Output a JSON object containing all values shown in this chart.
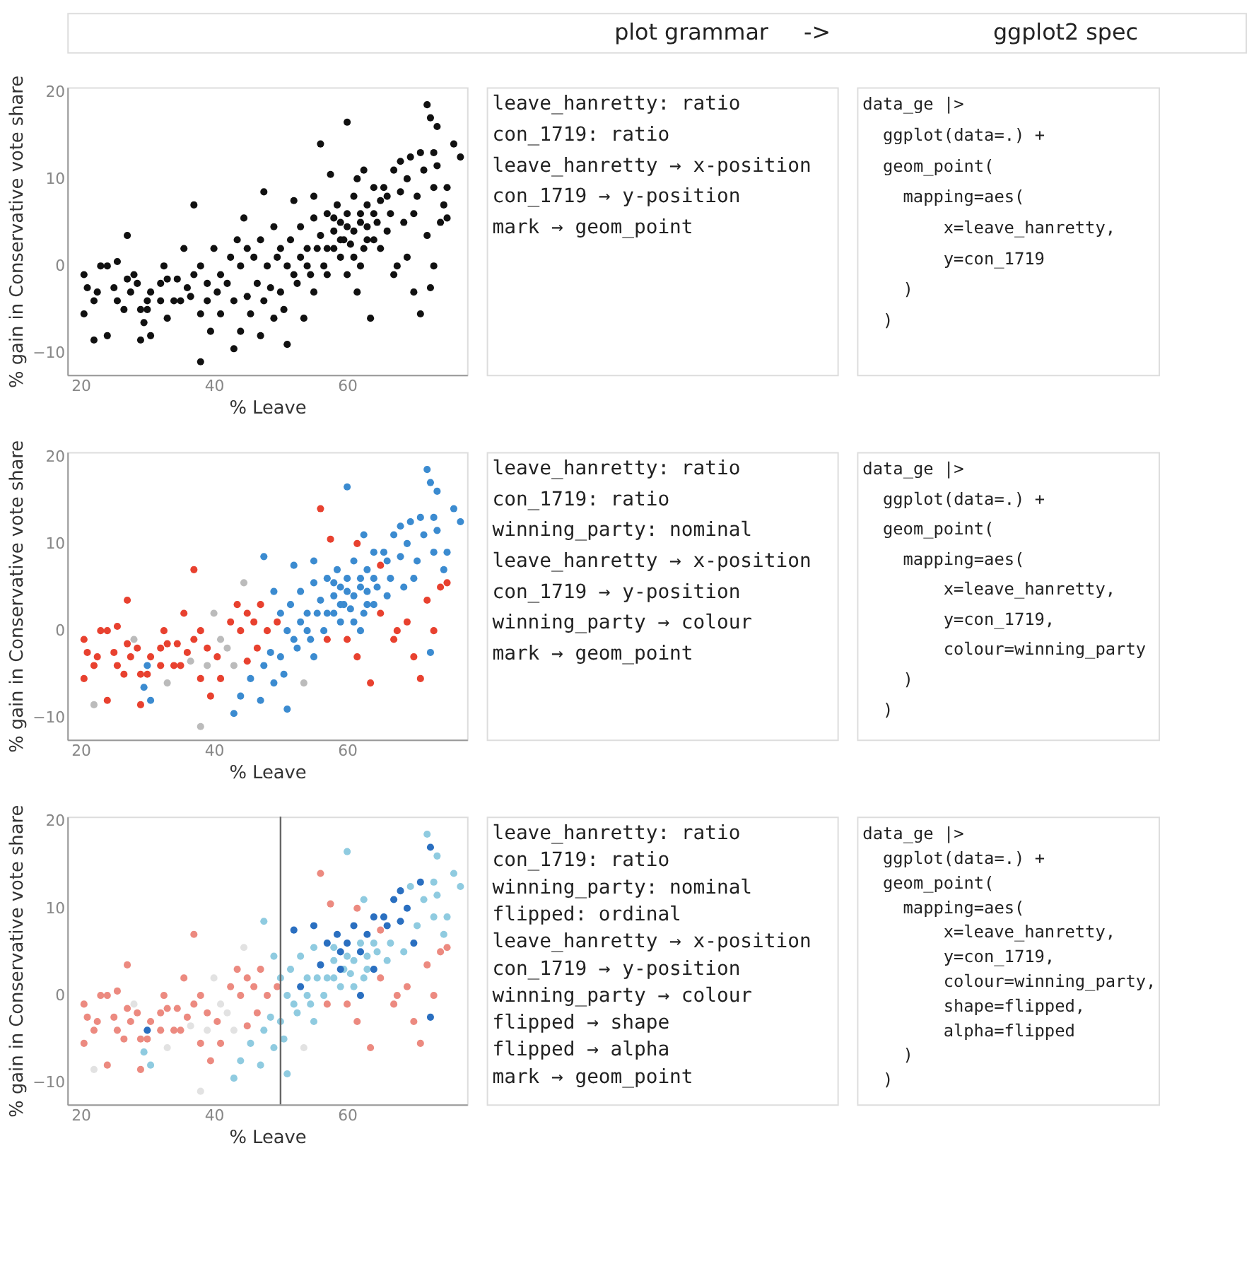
{
  "chart_data": [
    {
      "type": "other",
      "annotations": [
        "plot grammar",
        "->",
        "ggplot2 spec"
      ]
    },
    {
      "type": "scatter",
      "xlabel": "% Leave",
      "ylabel": "% gain in Conservative vote share",
      "xlim": [
        18,
        78
      ],
      "ylim": [
        -12.5,
        20.5
      ],
      "xticks": [
        20,
        40,
        60
      ],
      "yticks": [
        -10,
        0,
        10,
        20
      ],
      "marker": "circle",
      "series": [
        {
          "color": "#111111",
          "x": [
            20.5,
            21,
            20.5,
            22,
            22,
            22.5,
            23,
            24,
            24,
            25,
            25.5,
            25.5,
            26.5,
            27,
            27,
            27.5,
            28,
            28.5,
            29,
            29,
            29.5,
            30,
            30,
            30.5,
            30.5,
            32,
            32,
            32.5,
            33,
            33,
            34,
            34.5,
            35,
            35.5,
            36,
            36.5,
            37,
            37,
            38,
            38,
            38,
            39,
            39,
            39.5,
            40,
            40.5,
            41,
            41,
            42,
            42.5,
            43,
            43,
            43.5,
            44,
            44,
            44.5,
            45,
            45,
            45.5,
            46,
            46.5,
            47,
            47,
            47.5,
            47.5,
            48,
            48.5,
            49,
            49,
            49.5,
            50,
            50,
            50.5,
            51,
            51,
            51.5,
            52,
            52,
            52.5,
            53,
            53,
            53.5,
            54,
            54,
            54.5,
            55,
            55,
            55,
            55.5,
            56,
            56,
            56.5,
            57,
            57,
            57.5,
            58,
            58,
            58.5,
            59,
            59,
            59.5,
            60,
            60,
            60,
            60.5,
            61,
            61,
            61.5,
            61.5,
            62,
            62,
            62.5,
            62.5,
            63,
            63,
            63.5,
            64,
            64,
            64.5,
            65,
            65,
            65.5,
            66,
            66.5,
            67,
            67,
            67.5,
            68,
            68,
            68.5,
            69,
            69,
            69.5,
            70,
            70,
            70.5,
            71,
            71,
            71.5,
            72,
            72,
            72.5,
            72.5,
            73,
            73,
            73,
            73.5,
            73.5,
            74,
            74.5,
            75,
            75,
            76,
            77,
            59,
            58,
            57,
            60,
            61,
            63,
            62,
            64,
            66
          ],
          "values": [
            -1,
            -2.5,
            -5.5,
            -4,
            -8.5,
            -3,
            0,
            0,
            -8,
            -2.5,
            0.5,
            -4,
            -5,
            3.5,
            -1.5,
            -3,
            -1,
            -2,
            -5,
            -8.5,
            -6.5,
            -4,
            -5,
            -3,
            -8,
            -2,
            -4,
            0,
            -1.5,
            -6,
            -4,
            -1.5,
            -4,
            2,
            -2.5,
            -3.5,
            7,
            -1,
            0,
            -5.5,
            -11,
            -2,
            -4,
            -7.5,
            2,
            -3,
            -1,
            -5.5,
            -2,
            1,
            -4,
            -9.5,
            3,
            0,
            -7.5,
            5.5,
            -3.5,
            2,
            -5.5,
            1,
            -2,
            3,
            -8,
            -4,
            8.5,
            0,
            -2.5,
            4.5,
            -6,
            1,
            -3,
            2,
            -5,
            -9,
            0,
            3,
            -1,
            7.5,
            -2,
            1,
            4.5,
            -6,
            0,
            2,
            -1,
            5.5,
            8,
            -3,
            2,
            14,
            3.5,
            0,
            6,
            -1,
            10.5,
            4,
            2,
            7,
            1,
            5,
            3,
            16.5,
            -1,
            6,
            2.5,
            8,
            4,
            -3,
            10,
            0,
            6,
            11,
            2,
            4.5,
            7,
            -6,
            3,
            9,
            5,
            2,
            7.5,
            9,
            4,
            6,
            -1,
            11,
            0,
            8.5,
            12,
            5,
            1,
            10,
            12.5,
            -3,
            6,
            8,
            13,
            -5.5,
            11,
            3.5,
            18.5,
            -2.5,
            17,
            13,
            0,
            9,
            16,
            11.5,
            5,
            7,
            9,
            5.5,
            14,
            12.5,
            3,
            5.5,
            2,
            4.5,
            1,
            3,
            5,
            6,
            8
          ]
        }
      ]
    },
    {
      "type": "other",
      "annotations": [
        "leave_hanretty: ratio",
        "con_1719: ratio",
        "leave_hanretty → x-position",
        "con_1719 → y-position",
        "mark → geom_point"
      ]
    },
    {
      "type": "other",
      "annotations": [
        "data_ge |>",
        "  ggplot(data=.) +",
        "  geom_point(",
        "    mapping=aes(",
        "        x=leave_hanretty,",
        "        y=con_1719",
        "    )",
        "  )"
      ]
    },
    {
      "type": "scatter",
      "xlabel": "% Leave",
      "ylabel": "% gain in Conservative vote share",
      "xlim": [
        18,
        78
      ],
      "ylim": [
        -12.5,
        20.5
      ],
      "xticks": [
        20,
        40,
        60
      ],
      "yticks": [
        -10,
        0,
        10,
        20
      ],
      "marker": "circle",
      "series": [
        {
          "color": "#bbbbbb",
          "x": [
            22,
            28,
            33,
            36.5,
            38,
            39,
            40,
            41,
            42,
            43,
            44.5,
            53.5
          ],
          "values": [
            -8.5,
            -1,
            -6,
            -3.5,
            -11,
            -4,
            2,
            -1,
            -2,
            -4,
            5.5,
            -6
          ]
        },
        {
          "color": "#e8412f",
          "x": [
            20.5,
            21,
            20.5,
            22,
            22.5,
            23,
            24,
            24,
            25,
            25.5,
            25.5,
            26.5,
            27,
            27,
            27.5,
            28.5,
            29,
            29,
            30,
            30.5,
            32,
            32,
            32.5,
            33,
            34,
            34.5,
            35,
            35.5,
            36,
            37,
            37,
            38,
            38,
            39,
            39.5,
            40.5,
            41,
            42.5,
            43.5,
            44,
            45,
            45,
            46,
            46.5,
            47,
            48,
            49.5,
            56,
            57,
            57.5,
            60,
            61.5,
            61.5,
            63.5,
            65,
            65,
            67,
            67.5,
            69,
            70,
            71,
            72,
            73,
            74,
            75
          ],
          "values": [
            -1,
            -2.5,
            -5.5,
            -4,
            -3,
            0,
            0,
            -8,
            -2.5,
            0.5,
            -4,
            -5,
            3.5,
            -1.5,
            -3,
            -2,
            -5,
            -8.5,
            -5,
            -3,
            -2,
            -4,
            0,
            -1.5,
            -4,
            -1.5,
            -4,
            2,
            -2.5,
            7,
            -1,
            0,
            -5.5,
            -2,
            -7.5,
            -3,
            -5.5,
            1,
            3,
            0,
            -3.5,
            2,
            1,
            -2,
            3,
            0,
            1,
            14,
            -1,
            10.5,
            -1,
            -3,
            10,
            -6,
            2,
            7.5,
            -1,
            0,
            1,
            -3,
            -5.5,
            3.5,
            0,
            5,
            5.5
          ]
        },
        {
          "color": "#3b8bd0",
          "x": [
            30,
            29.5,
            30.5,
            43,
            44,
            45.5,
            47,
            47.5,
            47.5,
            48.5,
            49,
            49,
            50,
            50,
            50.5,
            51,
            51,
            51.5,
            52,
            52,
            52.5,
            53,
            53,
            54,
            54,
            54.5,
            55,
            55,
            55,
            55.5,
            56,
            56.5,
            57,
            58,
            58,
            58.5,
            59,
            59,
            59.5,
            60,
            60,
            60.5,
            61,
            61,
            62,
            62.5,
            62.5,
            63,
            63,
            64,
            64,
            64.5,
            65.5,
            66,
            66.5,
            67,
            68,
            68,
            68.5,
            69,
            69.5,
            70,
            70.5,
            71,
            71.5,
            72,
            72.5,
            72.5,
            73,
            73,
            73.5,
            73.5,
            74.5,
            75,
            76,
            77,
            59,
            58,
            57,
            60,
            61,
            63,
            62,
            64,
            66,
            62
          ],
          "values": [
            -4,
            -6.5,
            -8,
            -9.5,
            -7.5,
            -5.5,
            -8,
            -4,
            8.5,
            -2.5,
            4.5,
            -6,
            -3,
            2,
            -5,
            -9,
            0,
            3,
            -1,
            7.5,
            -2,
            1,
            4.5,
            0,
            2,
            -1,
            5.5,
            8,
            -3,
            2,
            3.5,
            0,
            6,
            4,
            2,
            7,
            1,
            5,
            3,
            16.5,
            6,
            2.5,
            8,
            4,
            6,
            11,
            2,
            4.5,
            7,
            3,
            9,
            5,
            9,
            4,
            6,
            11,
            8.5,
            12,
            5,
            10,
            12.5,
            6,
            8,
            13,
            11,
            18.5,
            -2.5,
            17,
            13,
            9,
            16,
            11.5,
            7,
            9,
            14,
            12.5,
            3,
            5.5,
            2,
            4.5,
            1,
            3,
            5,
            6,
            8,
            0
          ]
        }
      ]
    },
    {
      "type": "other",
      "annotations": [
        "leave_hanretty: ratio",
        "con_1719: ratio",
        "winning_party: nominal",
        "leave_hanretty → x-position",
        "con_1719 → y-position",
        "winning_party → colour",
        "mark → geom_point"
      ]
    },
    {
      "type": "other",
      "annotations": [
        "data_ge |>",
        "  ggplot(data=.) +",
        "  geom_point(",
        "    mapping=aes(",
        "        x=leave_hanretty,",
        "        y=con_1719,",
        "        colour=winning_party",
        "    )",
        "  )"
      ]
    },
    {
      "type": "scatter",
      "xlabel": "% Leave",
      "ylabel": "% gain in Conservative vote share",
      "xlim": [
        18,
        78
      ],
      "ylim": [
        -12.5,
        20.5
      ],
      "xticks": [
        20,
        40,
        60
      ],
      "yticks": [
        -10,
        0,
        10,
        20
      ],
      "marker": "circle",
      "ref_lines": [
        {
          "axis": "x",
          "value": 50,
          "color": "#666666"
        }
      ],
      "series": [
        {
          "color": "#e2e2e2",
          "x": [
            22,
            28,
            33,
            36.5,
            38,
            39,
            40,
            41,
            42,
            43,
            44.5,
            53.5
          ],
          "values": [
            -8.5,
            -1,
            -6,
            -3.5,
            -11,
            -4,
            2,
            -1,
            -2,
            -4,
            5.5,
            -6
          ]
        },
        {
          "color": "#ec8a80",
          "x": [
            20.5,
            21,
            20.5,
            22,
            22.5,
            23,
            24,
            24,
            25,
            25.5,
            25.5,
            26.5,
            27,
            27,
            27.5,
            28.5,
            29,
            29,
            30,
            30.5,
            32,
            32,
            32.5,
            33,
            34,
            34.5,
            35,
            35.5,
            36,
            37,
            37,
            38,
            38,
            39,
            39.5,
            40.5,
            41,
            42.5,
            43.5,
            44,
            45,
            45,
            46,
            46.5,
            47,
            48,
            49.5,
            56,
            57,
            57.5,
            60,
            61.5,
            61.5,
            63.5,
            65,
            65,
            67,
            67.5,
            69,
            70,
            71,
            72,
            73,
            74,
            75
          ],
          "values": [
            -1,
            -2.5,
            -5.5,
            -4,
            -3,
            0,
            0,
            -8,
            -2.5,
            0.5,
            -4,
            -5,
            3.5,
            -1.5,
            -3,
            -2,
            -5,
            -8.5,
            -5,
            -3,
            -2,
            -4,
            0,
            -1.5,
            -4,
            -1.5,
            -4,
            2,
            -2.5,
            7,
            -1,
            0,
            -5.5,
            -2,
            -7.5,
            -3,
            -5.5,
            1,
            3,
            0,
            -3.5,
            2,
            1,
            -2,
            3,
            0,
            1,
            14,
            -1,
            10.5,
            -1,
            -3,
            10,
            -6,
            2,
            7.5,
            -1,
            0,
            1,
            -3,
            -5.5,
            3.5,
            0,
            5,
            5.5
          ]
        },
        {
          "color": "#8fcbe0",
          "x": [
            29.5,
            30.5,
            43,
            44,
            45.5,
            47,
            47.5,
            47.5,
            48.5,
            49,
            49,
            50,
            50,
            50.5,
            51,
            51,
            51.5,
            52,
            52.5,
            53,
            54,
            54,
            54.5,
            55,
            55,
            55.5,
            56.5,
            58,
            58,
            59,
            59.5,
            60,
            60.5,
            61,
            62,
            62.5,
            62.5,
            63,
            64.5,
            66,
            66.5,
            68.5,
            69.5,
            70.5,
            71.5,
            72,
            73,
            73,
            73.5,
            73.5,
            74.5,
            75,
            76,
            77,
            58,
            57,
            60,
            61,
            63,
            64
          ],
          "values": [
            -6.5,
            -8,
            -9.5,
            -7.5,
            -5.5,
            -8,
            -4,
            8.5,
            -2.5,
            4.5,
            -6,
            -3,
            2,
            -5,
            -9,
            0,
            3,
            -1,
            -2,
            4.5,
            0,
            2,
            -1,
            5.5,
            -3,
            2,
            0,
            4,
            2,
            1,
            3,
            16.5,
            2.5,
            4,
            6,
            11,
            2,
            4.5,
            5,
            4,
            6,
            5,
            12.5,
            8,
            11,
            18.5,
            13,
            9,
            16,
            11.5,
            7,
            9,
            14,
            12.5,
            5.5,
            2,
            4.5,
            1,
            3,
            6
          ]
        },
        {
          "color": "#2a6fc0",
          "x": [
            30,
            52,
            55,
            57,
            58.5,
            60,
            61,
            62,
            63,
            64,
            65.5,
            67,
            68,
            68,
            69,
            71,
            72.5,
            72.5,
            62,
            53,
            56,
            59,
            64,
            66,
            59,
            70
          ],
          "values": [
            -4,
            7.5,
            8,
            6,
            7,
            6,
            8,
            5,
            7,
            9,
            9,
            11,
            12,
            8.5,
            10,
            13,
            17,
            -2.5,
            0,
            1,
            3.5,
            5,
            3,
            8,
            3,
            6
          ]
        }
      ]
    },
    {
      "type": "other",
      "annotations": [
        "leave_hanretty: ratio",
        "con_1719: ratio",
        "winning_party: nominal",
        "flipped: ordinal",
        "leave_hanretty → x-position",
        "con_1719 → y-position",
        "winning_party → colour",
        "flipped → shape",
        "flipped → alpha",
        "mark → geom_point"
      ]
    },
    {
      "type": "other",
      "annotations": [
        "data_ge |>",
        "  ggplot(data=.) +",
        "  geom_point(",
        "    mapping=aes(",
        "        x=leave_hanretty,",
        "        y=con_1719,",
        "        colour=winning_party,",
        "        shape=flipped,",
        "        alpha=flipped",
        "    )",
        "  )"
      ]
    }
  ]
}
